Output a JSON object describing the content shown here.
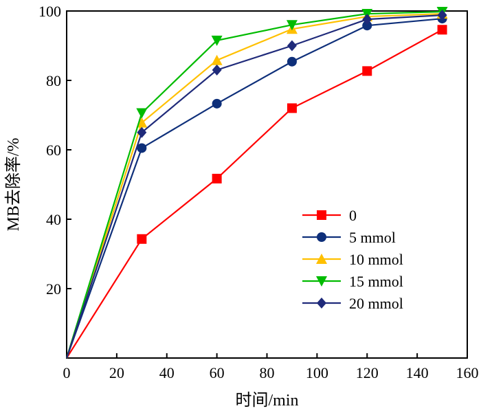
{
  "chart_data": {
    "type": "line",
    "xlabel": "时间/min",
    "ylabel": "MB去除率/%",
    "xlim": [
      0,
      160
    ],
    "ylim": [
      0,
      100
    ],
    "x_ticks": [
      0,
      20,
      40,
      60,
      80,
      100,
      120,
      140,
      160
    ],
    "y_ticks": [
      20,
      40,
      60,
      80,
      100
    ],
    "grid": false,
    "legend_position": "lower-right",
    "x": [
      0,
      30,
      60,
      90,
      120,
      150
    ],
    "series": [
      {
        "name": "0",
        "color": "#ff0000",
        "marker": "square",
        "values": [
          0,
          34.3,
          51.7,
          72.0,
          82.7,
          94.6
        ]
      },
      {
        "name": "5 mmol",
        "color": "#0e2f7a",
        "marker": "circle",
        "values": [
          0,
          60.5,
          73.3,
          85.4,
          95.8,
          97.8
        ]
      },
      {
        "name": "10 mmol",
        "color": "#ffc000",
        "marker": "triangle-up",
        "values": [
          0,
          67.8,
          85.8,
          94.8,
          98.4,
          99.2
        ]
      },
      {
        "name": "15 mmol",
        "color": "#00bb00",
        "marker": "triangle-down",
        "values": [
          0,
          70.6,
          91.5,
          96.0,
          99.2,
          99.8
        ]
      },
      {
        "name": "20 mmol",
        "color": "#1f2a7a",
        "marker": "diamond",
        "values": [
          0,
          65.0,
          83.0,
          90.0,
          97.6,
          98.8
        ]
      }
    ]
  }
}
